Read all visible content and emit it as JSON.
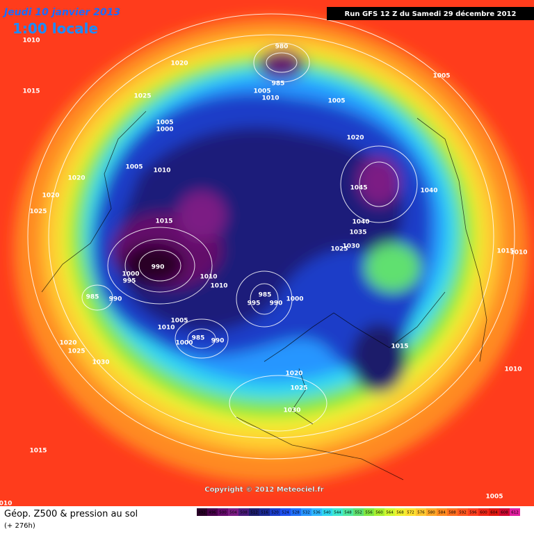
{
  "header": {
    "date": "Jeudi 10 janvier 2013",
    "time": "1:00 locale"
  },
  "run": "Run GFS 12 Z du Samedi 29 décembre 2012",
  "copyright": "Copyright © 2012 Meteociel.fr",
  "footer": {
    "title": "Géop. Z500 & pression au sol",
    "lead": "(+ 276h)"
  },
  "isobar_labels": [
    "1010",
    "1020",
    "1015",
    "1025",
    "1005",
    "1005",
    "980",
    "985",
    "1005",
    "1010",
    "1005",
    "1000",
    "1020",
    "1005",
    "1010",
    "1020",
    "1045",
    "1040",
    "1020",
    "1025",
    "1015",
    "1040",
    "1035",
    "1030",
    "1025",
    "1015",
    "1010",
    "990",
    "1000",
    "995",
    "1010",
    "1010",
    "985",
    "995",
    "990",
    "1000",
    "985",
    "990",
    "1005",
    "1010",
    "985",
    "1000",
    "990",
    "1015",
    "1020",
    "1025",
    "1030",
    "1010",
    "1020",
    "1025",
    "1030",
    "1015",
    "1005",
    "010"
  ],
  "scale": {
    "labels": [
      492,
      496,
      500,
      504,
      508,
      512,
      516,
      520,
      524,
      528,
      532,
      536,
      540,
      544,
      548,
      552,
      556,
      560,
      564,
      568,
      572,
      576,
      580,
      584,
      588,
      592,
      596,
      600,
      604,
      608,
      612
    ],
    "colors": [
      "#2a0028",
      "#48004a",
      "#640a6a",
      "#7c1c84",
      "#4a1a7a",
      "#1c1c6a",
      "#1a2890",
      "#1a3cc8",
      "#1e50f0",
      "#2070f8",
      "#2896ff",
      "#30b8ff",
      "#30d8f0",
      "#40e8d0",
      "#50e8a0",
      "#60e070",
      "#80e840",
      "#a8f030",
      "#d0f830",
      "#f0f030",
      "#ffe030",
      "#ffc830",
      "#ffa828",
      "#ff8c20",
      "#ff7020",
      "#ff5820",
      "#ff4020",
      "#f02818",
      "#e01810",
      "#d00830",
      "#e020a0"
    ]
  }
}
